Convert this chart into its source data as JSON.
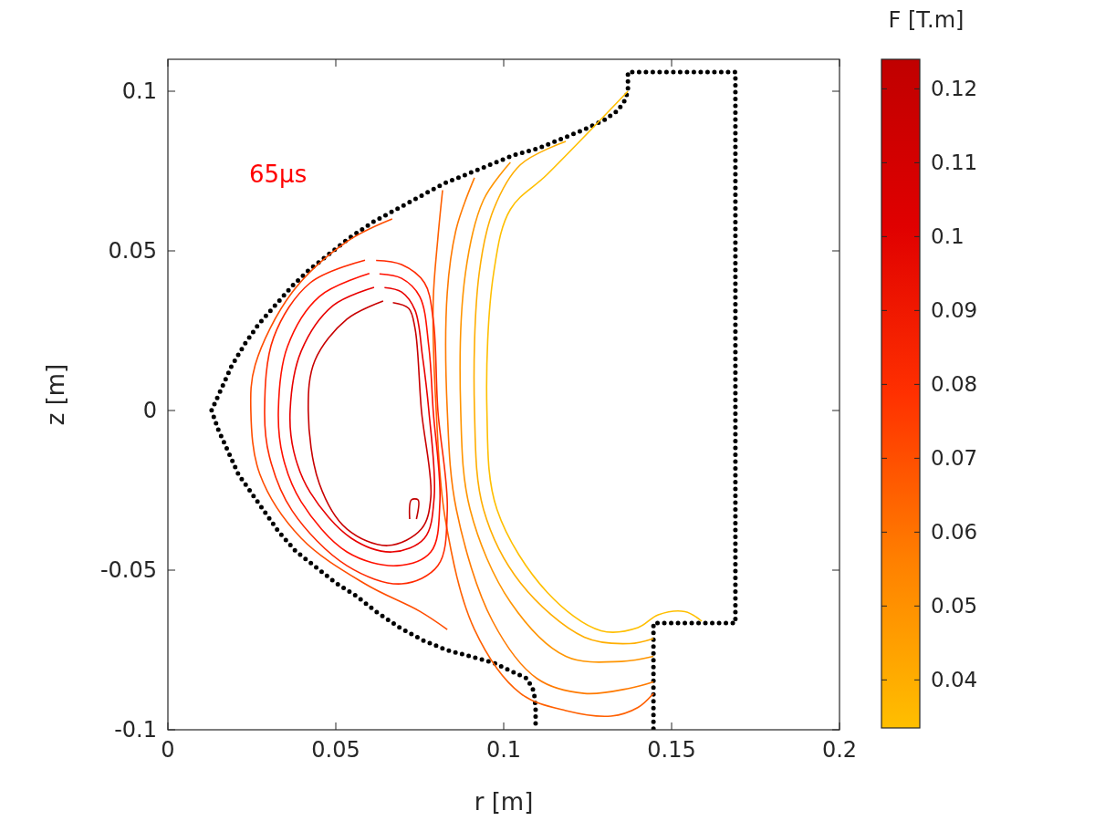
{
  "chart_data": {
    "type": "line",
    "xlabel": "r [m]",
    "ylabel": "z [m]",
    "clabel": "F [T.m]",
    "annotations": [
      "65μs"
    ],
    "xlim": [
      0,
      0.2
    ],
    "xticks": [
      0,
      0.05,
      0.1,
      0.15,
      0.2
    ],
    "ylim": [
      -0.1,
      0.11
    ],
    "yticks": [
      -0.1,
      -0.05,
      0,
      0.05,
      0.1
    ],
    "clim": [
      0.0335,
      0.124
    ],
    "cticks": [
      0.04,
      0.05,
      0.06,
      0.07,
      0.08,
      0.09,
      0.1,
      0.11,
      0.12
    ],
    "series": [
      {
        "line_style": "dotted",
        "color": "#000000",
        "x": [
          0.1095,
          0.1095,
          0.109,
          0.107,
          0.103,
          0.097,
          0.09,
          0.083,
          0.076,
          0.069,
          0.062,
          0.056,
          0.05,
          0.044,
          0.038,
          0.033,
          0.029,
          0.025,
          0.021,
          0.018,
          0.015,
          0.013,
          0.016,
          0.019,
          0.023,
          0.027,
          0.032,
          0.037,
          0.042,
          0.048,
          0.054,
          0.061,
          0.068,
          0.075,
          0.082,
          0.089,
          0.096,
          0.103,
          0.11,
          0.117,
          0.124,
          0.13,
          0.134,
          0.136,
          0.137,
          0.137,
          0.137,
          0.142,
          0.147,
          0.152,
          0.157,
          0.162,
          0.167,
          0.169,
          0.169,
          0.169,
          0.169,
          0.169,
          0.169,
          0.169,
          0.169,
          0.169,
          0.169,
          0.169,
          0.169,
          0.169,
          0.169,
          0.169,
          0.169,
          0.164,
          0.159,
          0.154,
          0.149,
          0.1446,
          0.1446,
          0.1446,
          0.1446,
          0.1446,
          0.1446,
          0.1446
        ],
        "values": [
          -0.098,
          -0.093,
          -0.088,
          -0.084,
          -0.082,
          -0.079,
          -0.077,
          -0.075,
          -0.072,
          -0.068,
          -0.063,
          -0.058,
          -0.054,
          -0.049,
          -0.044,
          -0.038,
          -0.032,
          -0.026,
          -0.02,
          -0.013,
          -0.006,
          0,
          0.007,
          0.014,
          0.021,
          0.027,
          0.033,
          0.039,
          0.044,
          0.049,
          0.054,
          0.059,
          0.063,
          0.067,
          0.071,
          0.074,
          0.077,
          0.08,
          0.082,
          0.085,
          0.088,
          0.091,
          0.094,
          0.097,
          0.1,
          0.103,
          0.106,
          0.106,
          0.106,
          0.106,
          0.106,
          0.106,
          0.106,
          0.106,
          0.094,
          0.082,
          0.07,
          0.058,
          0.046,
          0.034,
          0.022,
          0.01,
          -0.002,
          -0.014,
          -0.026,
          -0.038,
          -0.05,
          -0.062,
          -0.0666,
          -0.0666,
          -0.0666,
          -0.0666,
          -0.0666,
          -0.0666,
          -0.073,
          -0.079,
          -0.085,
          -0.091,
          -0.097,
          -0.1
        ]
      },
      {
        "type": "line",
        "color": "#ffbf00",
        "x": [
          0.137,
          0.113,
          0.102,
          0.097,
          0.095,
          0.098,
          0.113,
          0.129,
          0.14,
          0.146,
          0.154,
          0.159
        ],
        "values": [
          0.1,
          0.074,
          0.063,
          0.043,
          0,
          -0.031,
          -0.057,
          -0.069,
          -0.068,
          -0.064,
          -0.063,
          -0.066
        ]
      },
      {
        "type": "line",
        "color": "#ffae00",
        "x": [
          0.1185,
          0.105,
          0.097,
          0.0927,
          0.0913,
          0.094,
          0.105,
          0.124,
          0.1375,
          0.1446
        ],
        "values": [
          0.0843,
          0.077,
          0.063,
          0.043,
          0,
          -0.031,
          -0.054,
          -0.071,
          -0.073,
          -0.0714
        ]
      },
      {
        "type": "line",
        "color": "#ff9500",
        "x": [
          0.102,
          0.094,
          0.0886,
          0.0872,
          0.09,
          0.102,
          0.1185,
          0.135,
          0.1446
        ],
        "values": [
          0.0777,
          0.066,
          0.043,
          0,
          -0.031,
          -0.06,
          -0.077,
          -0.0786,
          -0.077
        ]
      },
      {
        "type": "line",
        "color": "#ff7a00",
        "x": [
          0.0913,
          0.0859,
          0.0832,
          0.0832,
          0.0859,
          0.0967,
          0.11,
          0.124,
          0.1375,
          0.1446
        ],
        "values": [
          0.0729,
          0.057,
          0.037,
          0,
          -0.031,
          -0.066,
          -0.084,
          -0.0886,
          -0.087,
          -0.085
        ]
      },
      {
        "type": "line",
        "color": "#ff6000",
        "x": [
          0.0818,
          0.0804,
          0.079,
          0.0799,
          0.0826,
          0.0913,
          0.105,
          0.1185,
          0.132,
          0.14,
          0.1446
        ],
        "values": [
          0.069,
          0.054,
          0.034,
          0,
          -0.034,
          -0.0686,
          -0.0886,
          -0.094,
          -0.0957,
          -0.093,
          -0.0886
        ]
      },
      {
        "type": "line",
        "color": "#ff4d00",
        "x": [
          0.0668,
          0.0533,
          0.037,
          0.026,
          0.0247,
          0.0274,
          0.0397,
          0.0587,
          0.075,
          0.0832
        ],
        "values": [
          0.06,
          0.0529,
          0.037,
          0.0143,
          0,
          -0.02,
          -0.04,
          -0.0543,
          -0.0629,
          -0.0686
        ]
      },
      {
        "type": "line",
        "color": "#ff2a00",
        "x": [
          0.0587,
          0.0424,
          0.0315,
          0.0288,
          0.0302,
          0.037,
          0.0533,
          0.0696,
          0.0804,
          0.0832,
          0.0804,
          0.079,
          0.0764,
          0.0696,
          0.062
        ],
        "values": [
          0.0471,
          0.04,
          0.0229,
          0,
          -0.0143,
          -0.0314,
          -0.0486,
          -0.0543,
          -0.0486,
          -0.0314,
          0,
          0.0286,
          0.04,
          0.0457,
          0.047
        ]
      },
      {
        "type": "line",
        "color": "#ff1000",
        "x": [
          0.06,
          0.0451,
          0.0356,
          0.0329,
          0.0342,
          0.0397,
          0.0533,
          0.0682,
          0.0783,
          0.081,
          0.079,
          0.0777,
          0.075,
          0.0696,
          0.063
        ],
        "values": [
          0.0429,
          0.0357,
          0.02,
          0,
          -0.0143,
          -0.0286,
          -0.0443,
          -0.0486,
          -0.0443,
          -0.0286,
          0,
          0.02,
          0.0357,
          0.0414,
          0.0428
        ]
      },
      {
        "type": "line",
        "color": "#e80000",
        "x": [
          0.0614,
          0.0492,
          0.0397,
          0.0364,
          0.0375,
          0.0424,
          0.0546,
          0.0668,
          0.0764,
          0.0793,
          0.0777,
          0.0758,
          0.0736,
          0.0696,
          0.0645
        ],
        "values": [
          0.0386,
          0.0329,
          0.0186,
          0,
          -0.0129,
          -0.0257,
          -0.04,
          -0.0443,
          -0.04,
          -0.0271,
          0,
          0.0171,
          0.0314,
          0.0371,
          0.0385
        ]
      },
      {
        "type": "line",
        "color": "#c80000",
        "x": [
          0.0641,
          0.0533,
          0.0438,
          0.0418,
          0.0451,
          0.0533,
          0.0655,
          0.0755,
          0.0783,
          0.0755,
          0.0736,
          0.0717,
          0.067
        ],
        "values": [
          0.0343,
          0.0286,
          0.0157,
          0,
          -0.0229,
          -0.0371,
          -0.0423,
          -0.0371,
          -0.0271,
          0,
          0.0257,
          0.032,
          0.0338
        ]
      },
      {
        "type": "line",
        "color": "#c00000",
        "x": [
          0.072,
          0.0725,
          0.0745,
          0.074
        ],
        "values": [
          -0.034,
          -0.028,
          -0.028,
          -0.034
        ]
      }
    ]
  }
}
